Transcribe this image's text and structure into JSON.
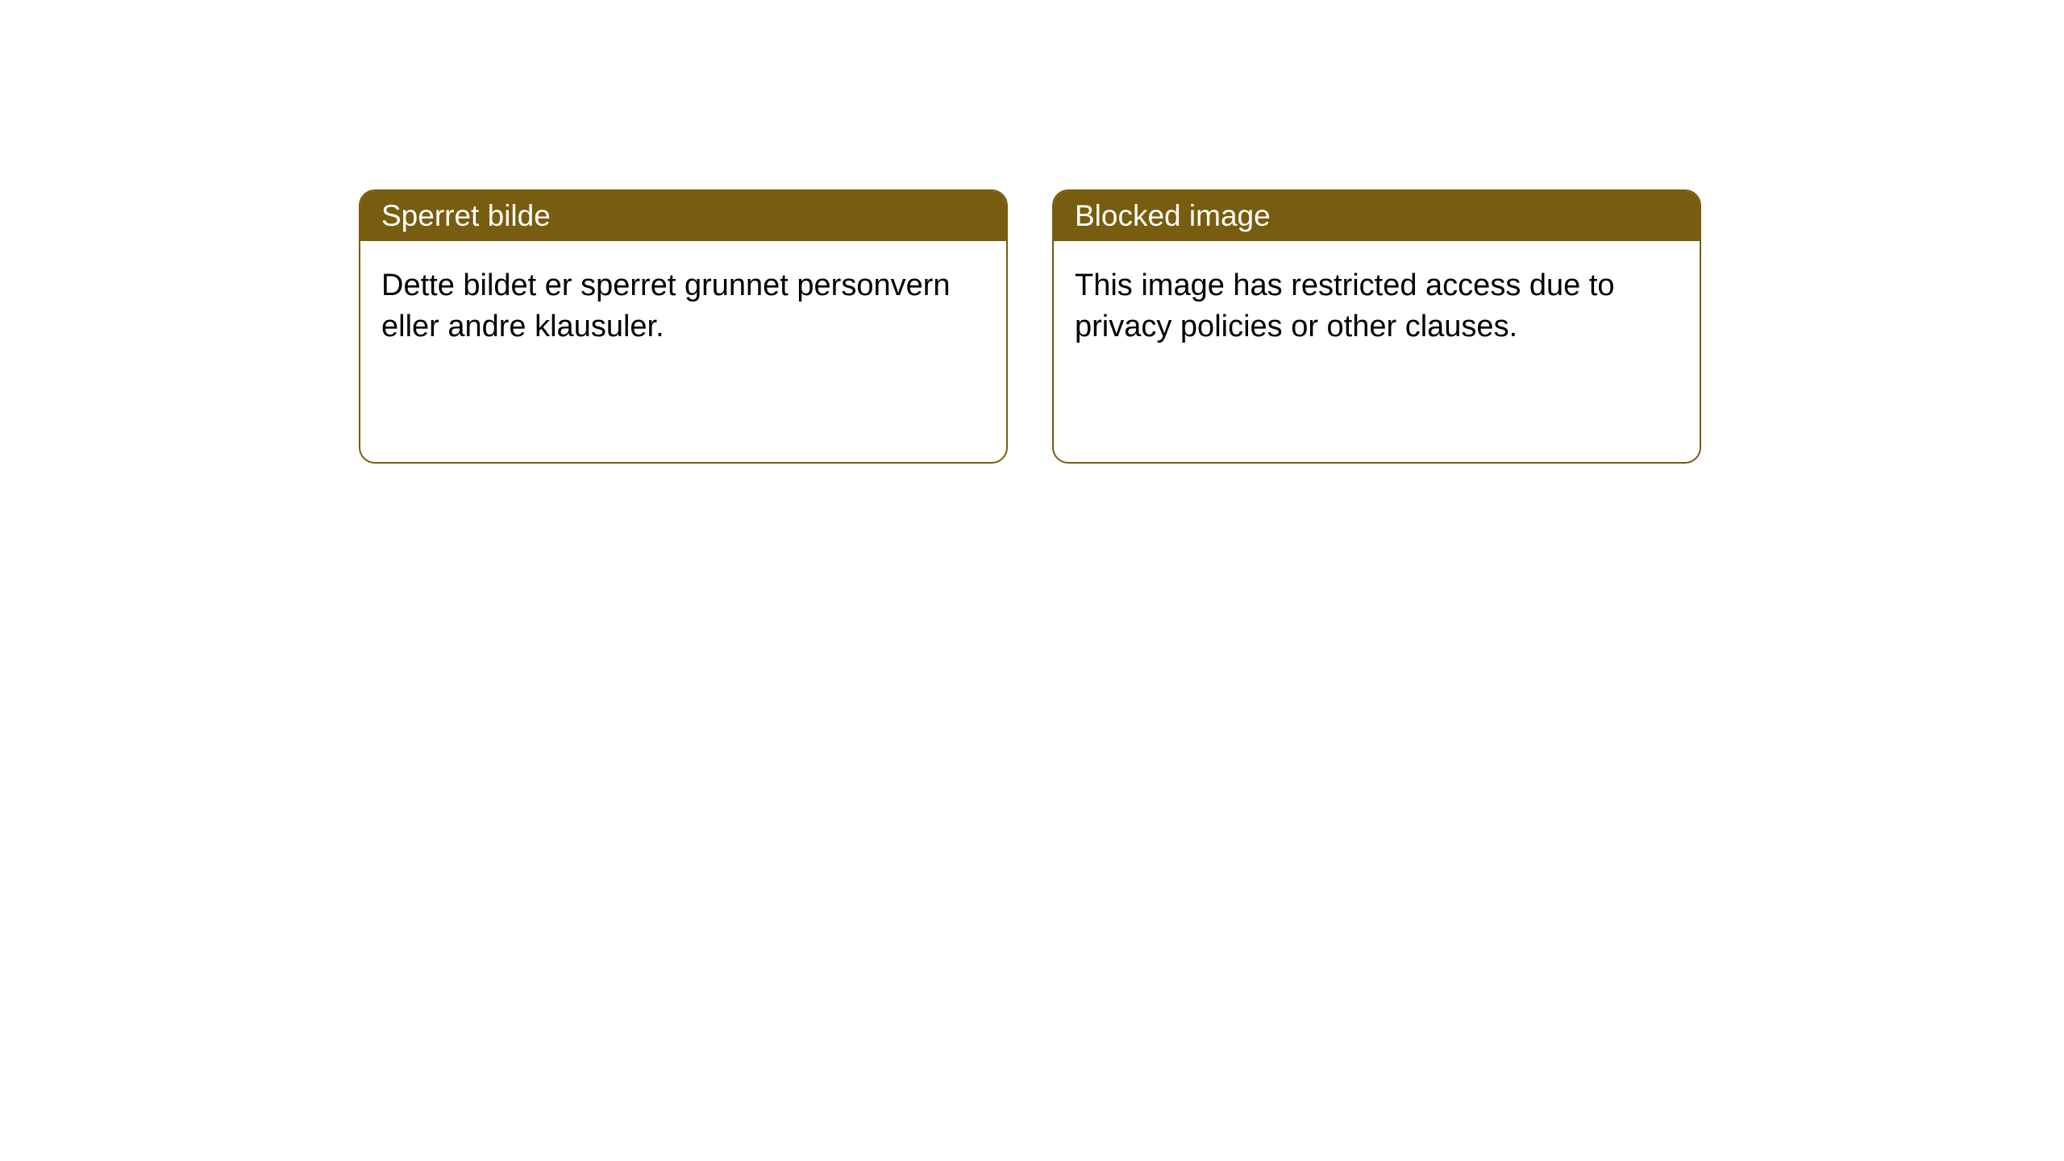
{
  "cards": [
    {
      "header": "Sperret bilde",
      "body": "Dette bildet er sperret grunnet personvern eller andre klausuler."
    },
    {
      "header": "Blocked image",
      "body": "This image has restricted access due to privacy policies or other clauses."
    }
  ],
  "style": {
    "header_bg_color": "#785c0f",
    "header_text_color": "#ffffff",
    "border_color": "#785c0f",
    "border_width": 2,
    "border_radius": 20,
    "card_bg_color": "#ffffff",
    "body_text_color": "#000000",
    "header_fontsize": 37,
    "body_fontsize": 38
  }
}
